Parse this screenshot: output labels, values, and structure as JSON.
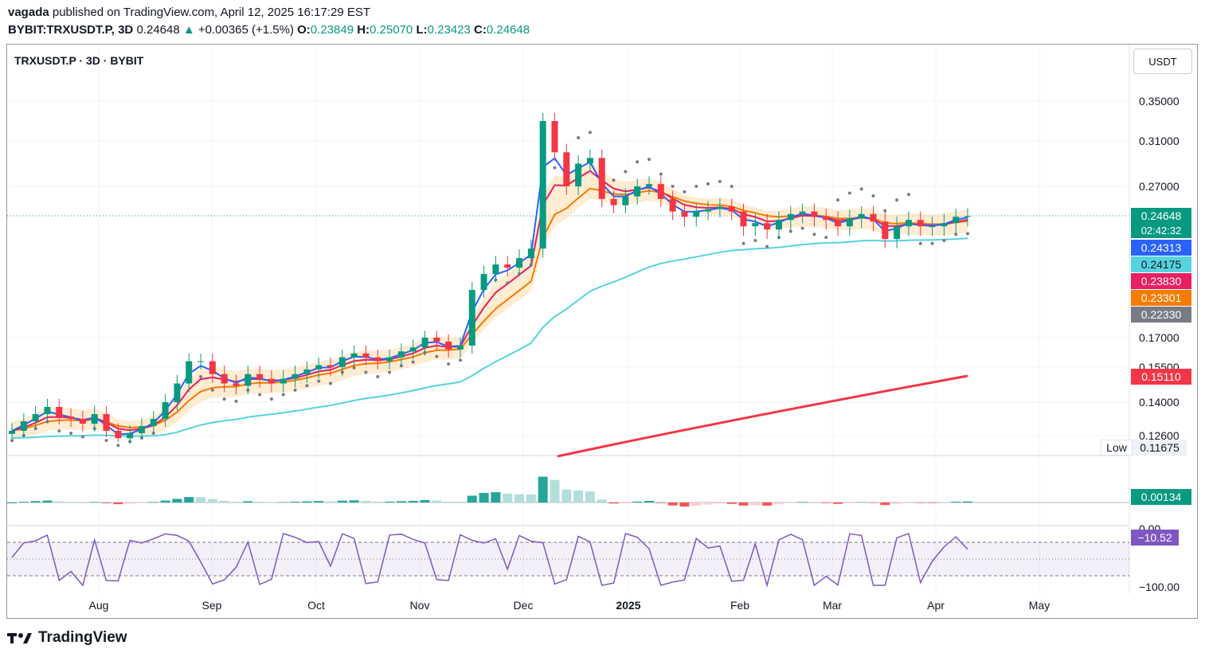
{
  "header": {
    "author": "vagada",
    "published_text": " published on TradingView.com, April 12, 2025 16:17:29 EST",
    "symbol_interval": "BYBIT:TRXUSDT.P, 3D",
    "last": "0.24648",
    "change": "+0.00365 (+1.5%)",
    "o_label": "O:",
    "o": "0.23849",
    "h_label": "H:",
    "h": "0.25070",
    "l_label": "L:",
    "l": "0.23423",
    "c_label": "C:",
    "c": "0.24648"
  },
  "chart_title": "TRXUSDT.P · 3D · BYBIT",
  "currency_button": "USDT",
  "price_axis": [
    "0.35000",
    "0.31000",
    "0.27000",
    "0.17000",
    "0.15500",
    "0.14000",
    "0.12600"
  ],
  "time_axis": [
    "Aug",
    "Sep",
    "Oct",
    "Nov",
    "Dec",
    "2025",
    "Feb",
    "Mar",
    "Apr",
    "May"
  ],
  "price_labels": {
    "last": "0.24648",
    "countdown": "02:42:32",
    "ema_fast": "0.24313",
    "ema_slow": "0.24175",
    "ma_pink": "0.23830",
    "ma_orange": "0.23301",
    "sar": "0.22330",
    "ma_long": "0.15110"
  },
  "low_label": "Low",
  "low_value": "0.11675",
  "histogram_value": "0.00134",
  "oscillator_top": "0.00",
  "oscillator_value": "−10.52",
  "oscillator_bottom": "−100.00",
  "colors": {
    "up": "#089981",
    "down": "#f23645",
    "ema_blue": "#2962ff",
    "ema_cyan": "#56d3e0",
    "pink": "#e91e63",
    "orange": "#f57c00",
    "sar": "#787b86",
    "long_ma": "#f23645",
    "hist_up": "#26a69a",
    "hist_up_light": "#b2dfdb",
    "hist_down": "#ff5252",
    "hist_down_light": "#ffcdd2",
    "osc": "#7e57c2"
  },
  "brand": "TradingView",
  "chart_data": {
    "type": "candlestick",
    "symbol": "TRXUSDT.P",
    "interval": "3D",
    "last_close": 0.24648,
    "low_marker": 0.11675,
    "closes": [
      0.128,
      0.132,
      0.135,
      0.138,
      0.134,
      0.133,
      0.131,
      0.135,
      0.128,
      0.124,
      0.127,
      0.13,
      0.133,
      0.14,
      0.148,
      0.158,
      0.158,
      0.152,
      0.148,
      0.147,
      0.152,
      0.15,
      0.148,
      0.15,
      0.152,
      0.154,
      0.156,
      0.155,
      0.16,
      0.162,
      0.16,
      0.158,
      0.16,
      0.163,
      0.165,
      0.17,
      0.168,
      0.164,
      0.166,
      0.2,
      0.21,
      0.216,
      0.214,
      0.22,
      0.226,
      0.33,
      0.3,
      0.27,
      0.29,
      0.295,
      0.26,
      0.255,
      0.262,
      0.27,
      0.272,
      0.26,
      0.25,
      0.246,
      0.25,
      0.252,
      0.254,
      0.25,
      0.24,
      0.242,
      0.238,
      0.244,
      0.248,
      0.25,
      0.246,
      0.244,
      0.24,
      0.245,
      0.248,
      0.243,
      0.232,
      0.24,
      0.244,
      0.24,
      0.24,
      0.242,
      0.246,
      0.24648
    ]
  }
}
